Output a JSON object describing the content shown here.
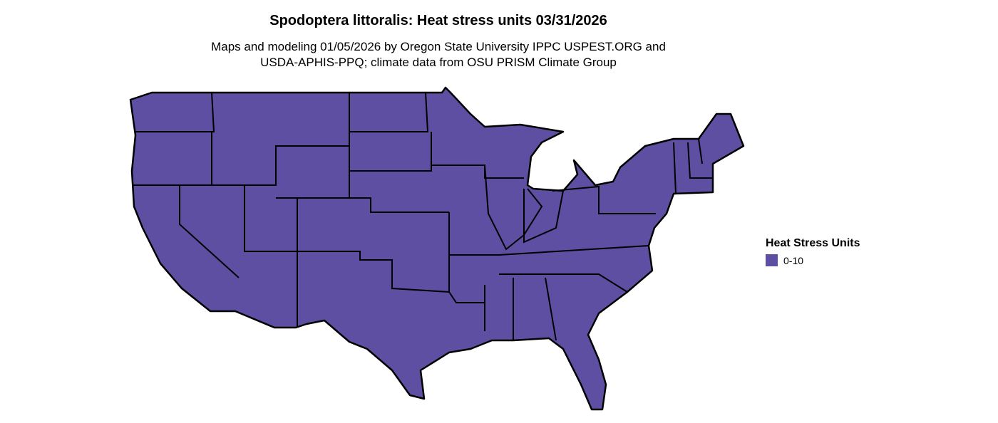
{
  "title": "Spodoptera littoralis: Heat stress units 03/31/2026",
  "subtitle_line1": "Maps and modeling 01/05/2026 by Oregon State University IPPC USPEST.ORG and",
  "subtitle_line2": "USDA-APHIS-PPQ; climate data from OSU PRISM Climate Group",
  "map": {
    "region": "Contiguous United States",
    "fill_color": "#5e4fa2",
    "border_color": "#000000"
  },
  "legend": {
    "title": "Heat Stress Units",
    "items": [
      {
        "label": "0-10",
        "color": "#5e4fa2"
      }
    ]
  }
}
